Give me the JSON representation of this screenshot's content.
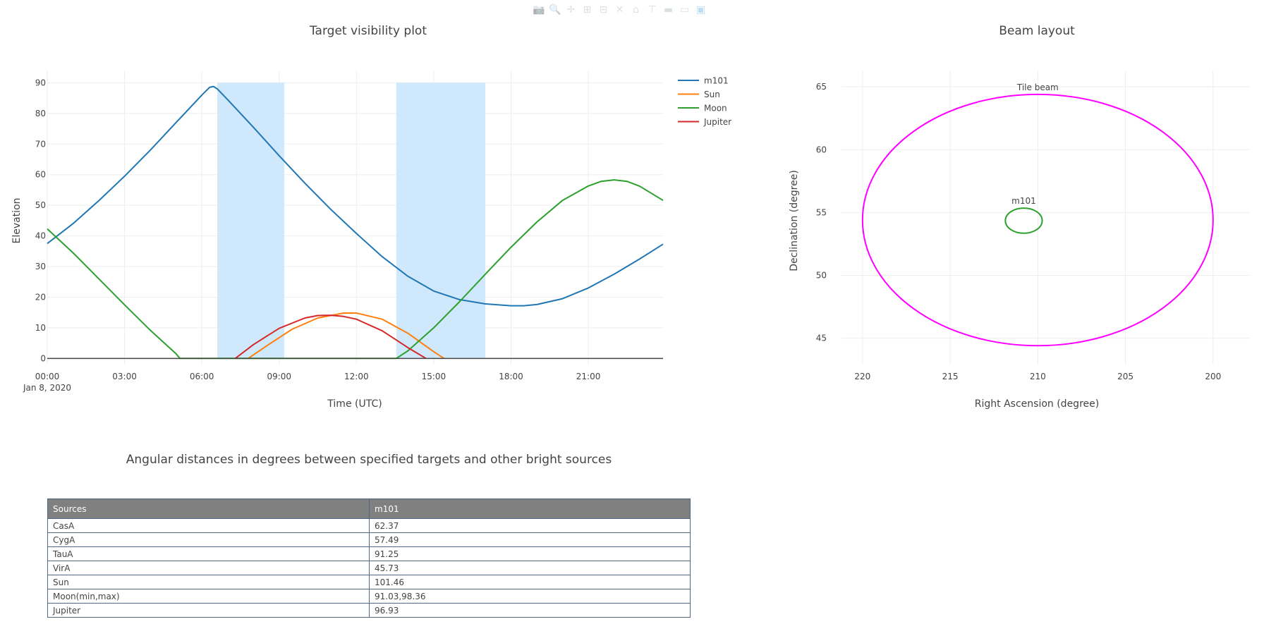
{
  "modebar": {
    "buttons": [
      {
        "name": "camera-icon",
        "glyph": "📷"
      },
      {
        "name": "zoom-icon",
        "glyph": "🔍"
      },
      {
        "name": "pan-icon",
        "glyph": "✛"
      },
      {
        "name": "zoom-in-icon",
        "glyph": "⊞"
      },
      {
        "name": "zoom-out-icon",
        "glyph": "⊟"
      },
      {
        "name": "autoscale-icon",
        "glyph": "✕"
      },
      {
        "name": "home-icon",
        "glyph": "⌂"
      },
      {
        "name": "spike-lines-icon",
        "glyph": "⊤"
      },
      {
        "name": "hover-closest-icon",
        "glyph": "▬"
      },
      {
        "name": "hover-compare-icon",
        "glyph": "▭"
      },
      {
        "name": "plotly-logo-icon",
        "glyph": "▣"
      }
    ]
  },
  "chart_data": [
    {
      "type": "line",
      "title": "Target visibility plot",
      "xlabel": "Time (UTC)",
      "ylabel": "Elevation",
      "x_unit": "hours since 2020-01-08 00:00 UTC",
      "xlim": [
        0,
        23.9
      ],
      "ylim": [
        -2,
        94
      ],
      "x_ticks": [
        {
          "value": 0,
          "label": "00:00"
        },
        {
          "value": 3,
          "label": "03:00"
        },
        {
          "value": 6,
          "label": "06:00"
        },
        {
          "value": 9,
          "label": "09:00"
        },
        {
          "value": 12,
          "label": "12:00"
        },
        {
          "value": 15,
          "label": "15:00"
        },
        {
          "value": 18,
          "label": "18:00"
        },
        {
          "value": 21,
          "label": "21:00"
        }
      ],
      "x_sublabel": "Jan 8, 2020",
      "y_ticks": [
        0,
        10,
        20,
        30,
        40,
        50,
        60,
        70,
        80,
        90
      ],
      "grid": true,
      "legend_position": "top-right",
      "shaded_windows": [
        {
          "x0": 6.6,
          "x1": 9.2,
          "y0": 0,
          "y1": 90,
          "color": "#cfe8fc"
        },
        {
          "x0": 13.55,
          "x1": 17.0,
          "y0": 0,
          "y1": 90,
          "color": "#cfe8fc"
        }
      ],
      "baseline": {
        "y": 0,
        "color": "#444444"
      },
      "series": [
        {
          "name": "m101",
          "color": "#1f77b4",
          "x": [
            0,
            1,
            2,
            3,
            4,
            5,
            6,
            6.3,
            6.45,
            6.6,
            7,
            8,
            9,
            10,
            11,
            12,
            13,
            14,
            15,
            16,
            17,
            18,
            18.5,
            19,
            20,
            21,
            22,
            23,
            23.9
          ],
          "y": [
            37.5,
            44,
            51.5,
            59.5,
            68,
            77,
            86,
            88.5,
            88.8,
            88,
            84.5,
            75.5,
            66.2,
            57.2,
            48.7,
            40.8,
            33.2,
            26.8,
            22.0,
            19.2,
            17.8,
            17.2,
            17.2,
            17.6,
            19.5,
            23.0,
            27.5,
            32.5,
            37.3
          ]
        },
        {
          "name": "Sun",
          "color": "#ff7f0e",
          "x": [
            7.8,
            8.5,
            9.5,
            10.5,
            11.5,
            12,
            13,
            14,
            15,
            15.4
          ],
          "y": [
            0,
            4,
            9.5,
            13.2,
            14.8,
            14.8,
            12.8,
            8.2,
            2.2,
            0
          ]
        },
        {
          "name": "Moon",
          "color": "#2ca02c",
          "x": [
            0,
            1,
            2,
            3,
            4,
            5,
            5.15,
            13.55,
            14,
            15,
            16,
            17,
            18,
            19,
            20,
            21,
            21.5,
            22,
            22.5,
            23,
            23.9
          ],
          "y": [
            42.3,
            34.5,
            26,
            17.5,
            9.2,
            1.5,
            0,
            0,
            2.5,
            10,
            18.5,
            27.5,
            36.3,
            44.5,
            51.6,
            56.3,
            57.8,
            58.3,
            57.8,
            56.2,
            51.6
          ]
        },
        {
          "name": "Jupiter",
          "color": "#d62728",
          "x": [
            7.3,
            8,
            9,
            10,
            10.5,
            11,
            11.5,
            12,
            13,
            14,
            14.7
          ],
          "y": [
            0,
            4.5,
            9.8,
            13.2,
            14.0,
            14.1,
            13.7,
            12.8,
            9.0,
            3.5,
            0
          ]
        }
      ]
    },
    {
      "type": "scatter",
      "title": "Beam layout",
      "xlabel": "Right Ascension (degree)",
      "ylabel": "Declination (degree)",
      "xlim": [
        221.2,
        197.9
      ],
      "ylim": [
        42.9,
        66.3
      ],
      "x_ticks": [
        220,
        215,
        210,
        205,
        200
      ],
      "y_ticks": [
        45,
        50,
        55,
        60,
        65
      ],
      "grid": true,
      "shapes": [
        {
          "name": "Tile beam",
          "kind": "ellipse",
          "center_ra": 210.0,
          "center_dec": 54.4,
          "radius_ra": 10.0,
          "radius_dec": 10.0,
          "color": "#ff00ff",
          "label_position": "top"
        },
        {
          "name": "m101",
          "kind": "ellipse",
          "center_ra": 210.8,
          "center_dec": 54.35,
          "radius_ra": 1.05,
          "radius_dec": 1.0,
          "color": "#2ca02c",
          "label_position": "top"
        }
      ]
    }
  ],
  "distance_table": {
    "title": "Angular distances in degrees between specified targets and other bright sources",
    "columns": [
      "Sources",
      "m101"
    ],
    "rows": [
      [
        "CasA",
        "62.37"
      ],
      [
        "CygA",
        "57.49"
      ],
      [
        "TauA",
        "91.25"
      ],
      [
        "VirA",
        "45.73"
      ],
      [
        "Sun",
        "101.46"
      ],
      [
        "Moon(min,max)",
        "91.03,98.36"
      ],
      [
        "Jupiter",
        "96.93"
      ]
    ],
    "header_color": "#808080"
  }
}
